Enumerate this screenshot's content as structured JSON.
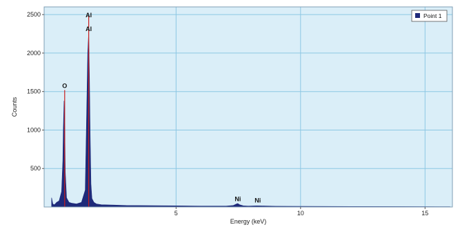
{
  "chart_data": {
    "type": "area",
    "xlabel": "Energy (keV)",
    "ylabel": "Counts",
    "xlim": [
      -0.3,
      16.1
    ],
    "ylim": [
      0,
      2600
    ],
    "x_ticks": [
      5,
      10,
      15
    ],
    "y_ticks": [
      500,
      1000,
      1500,
      2000,
      2500
    ],
    "grid": true,
    "legend_position": "top-right",
    "colors": {
      "background": "#daeef8",
      "grid": "#8cc7e3",
      "fill": "#1f2a7a",
      "peak_line": "#c81e1e",
      "frame": "#7f9fb5"
    },
    "series": [
      {
        "name": "Point 1",
        "x": [
          0.0,
          0.05,
          0.1,
          0.15,
          0.2,
          0.3,
          0.4,
          0.45,
          0.47,
          0.5,
          0.53,
          0.55,
          0.6,
          0.7,
          0.8,
          1.0,
          1.2,
          1.35,
          1.42,
          1.45,
          1.49,
          1.52,
          1.55,
          1.58,
          1.62,
          1.7,
          1.8,
          2.0,
          2.5,
          3.0,
          4.0,
          5.0,
          6.0,
          7.0,
          7.3,
          7.43,
          7.48,
          7.55,
          7.7,
          7.9,
          8.25,
          8.4,
          9.0,
          10.0,
          12.0,
          14.0,
          16.0
        ],
        "y": [
          120,
          40,
          30,
          40,
          60,
          80,
          200,
          600,
          1000,
          1380,
          1000,
          450,
          120,
          60,
          50,
          40,
          60,
          220,
          1450,
          2000,
          2270,
          1700,
          900,
          300,
          110,
          60,
          40,
          30,
          25,
          20,
          18,
          15,
          12,
          12,
          20,
          40,
          45,
          30,
          15,
          12,
          15,
          14,
          10,
          8,
          6,
          5,
          4
        ]
      }
    ],
    "peak_markers": [
      {
        "x": 0.525,
        "y": 1520
      },
      {
        "x": 1.49,
        "y": 2480
      }
    ],
    "annotations": [
      {
        "text": "O",
        "x": 0.525,
        "y": 1520
      },
      {
        "text": "Al",
        "x": 1.49,
        "y": 2260
      },
      {
        "text": "Al",
        "x": 1.49,
        "y": 2440
      },
      {
        "text": "Ni",
        "x": 7.48,
        "y": 50
      },
      {
        "text": "Ni",
        "x": 8.28,
        "y": 30
      }
    ]
  }
}
